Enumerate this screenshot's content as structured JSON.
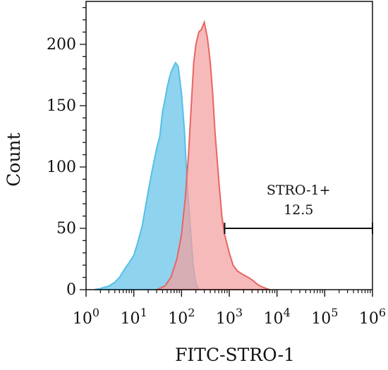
{
  "chart_data": {
    "type": "area",
    "xlabel": "FITC-STRO-1",
    "ylabel": "Count",
    "x_scale": "log",
    "xlim": [
      1,
      1000000
    ],
    "ylim": [
      0,
      235
    ],
    "x_ticks": [
      {
        "value": 1,
        "base": "10",
        "exp": "0"
      },
      {
        "value": 10,
        "base": "10",
        "exp": "1"
      },
      {
        "value": 100,
        "base": "10",
        "exp": "2"
      },
      {
        "value": 1000,
        "base": "10",
        "exp": "3"
      },
      {
        "value": 10000,
        "base": "10",
        "exp": "4"
      },
      {
        "value": 100000,
        "base": "10",
        "exp": "5"
      },
      {
        "value": 1000000,
        "base": "10",
        "exp": "6"
      }
    ],
    "y_ticks": [
      {
        "value": 0,
        "label": "0"
      },
      {
        "value": 50,
        "label": "50"
      },
      {
        "value": 100,
        "label": "100"
      },
      {
        "value": 150,
        "label": "150"
      },
      {
        "value": 200,
        "label": "200"
      }
    ],
    "series": [
      {
        "fill": "#8fd3ee",
        "stroke": "#55c0e8",
        "points": [
          [
            1.5,
            0
          ],
          [
            2,
            1
          ],
          [
            3,
            3
          ],
          [
            4,
            6
          ],
          [
            5,
            10
          ],
          [
            6,
            15
          ],
          [
            7,
            19
          ],
          [
            8,
            22
          ],
          [
            10,
            28
          ],
          [
            12,
            38
          ],
          [
            15,
            52
          ],
          [
            20,
            80
          ],
          [
            25,
            100
          ],
          [
            30,
            115
          ],
          [
            35,
            125
          ],
          [
            40,
            145
          ],
          [
            45,
            155
          ],
          [
            50,
            165
          ],
          [
            55,
            172
          ],
          [
            60,
            177
          ],
          [
            70,
            183
          ],
          [
            75,
            185
          ],
          [
            85,
            182
          ],
          [
            100,
            160
          ],
          [
            115,
            130
          ],
          [
            130,
            90
          ],
          [
            150,
            55
          ],
          [
            175,
            20
          ],
          [
            200,
            5
          ],
          [
            230,
            0
          ]
        ]
      },
      {
        "fill": "#f4a0a0",
        "stroke": "#e96464",
        "points": [
          [
            30,
            0
          ],
          [
            45,
            3
          ],
          [
            60,
            10
          ],
          [
            80,
            25
          ],
          [
            100,
            45
          ],
          [
            120,
            75
          ],
          [
            140,
            110
          ],
          [
            160,
            150
          ],
          [
            180,
            185
          ],
          [
            200,
            200
          ],
          [
            230,
            210
          ],
          [
            260,
            212
          ],
          [
            300,
            218
          ],
          [
            350,
            205
          ],
          [
            400,
            185
          ],
          [
            450,
            160
          ],
          [
            500,
            130
          ],
          [
            600,
            90
          ],
          [
            700,
            60
          ],
          [
            800,
            45
          ],
          [
            1000,
            30
          ],
          [
            1200,
            20
          ],
          [
            1500,
            15
          ],
          [
            2000,
            12
          ],
          [
            2500,
            10
          ],
          [
            3000,
            8
          ],
          [
            4000,
            4
          ],
          [
            5000,
            2
          ],
          [
            7000,
            0
          ]
        ]
      }
    ],
    "gate": {
      "x_start": 800,
      "x_end": 1000000,
      "y": 50,
      "label": "STRO-1+",
      "value": "12.5"
    }
  }
}
